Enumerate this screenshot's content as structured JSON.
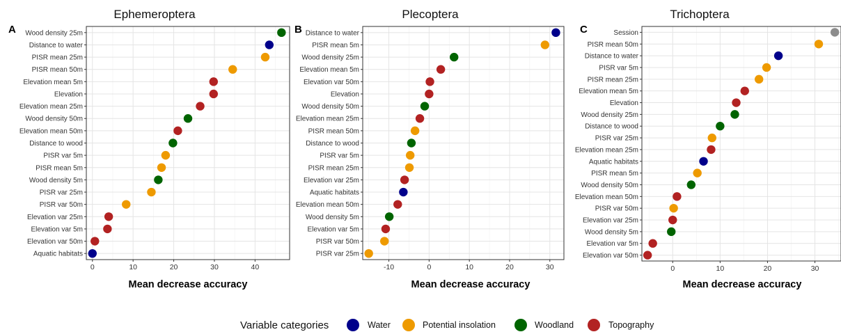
{
  "colors": {
    "Water": "#00008b",
    "Potential insolation": "#ee9a00",
    "Woodland": "#006400",
    "Topography": "#b22222",
    "Other": "#8c8c8c"
  },
  "legend": {
    "title": "Variable categories",
    "items": [
      {
        "label": "Water",
        "category": "Water"
      },
      {
        "label": "Potential insolation",
        "category": "Potential insolation"
      },
      {
        "label": "Woodland",
        "category": "Woodland"
      },
      {
        "label": "Topography",
        "category": "Topography"
      }
    ]
  },
  "chart_data": [
    {
      "type": "scatter",
      "panel": "A",
      "title": "Ephemeroptera",
      "xlabel": "Mean decrease accuracy",
      "xlim": [
        -1.5,
        48.5
      ],
      "xticks": [
        0,
        10,
        20,
        30,
        40
      ],
      "grid": true,
      "points": [
        {
          "label": "Wood density 25m",
          "value": 46.5,
          "category": "Woodland"
        },
        {
          "label": "Distance to water",
          "value": 43.5,
          "category": "Water"
        },
        {
          "label": "PISR mean 25m",
          "value": 42.5,
          "category": "Potential insolation"
        },
        {
          "label": "PISR mean 50m",
          "value": 34.5,
          "category": "Potential insolation"
        },
        {
          "label": "Elevation mean 5m",
          "value": 29.8,
          "category": "Topography"
        },
        {
          "label": "Elevation",
          "value": 29.8,
          "category": "Topography"
        },
        {
          "label": "Elevation mean 25m",
          "value": 26.5,
          "category": "Topography"
        },
        {
          "label": "Wood density 50m",
          "value": 23.5,
          "category": "Woodland"
        },
        {
          "label": "Elevation mean 50m",
          "value": 21.0,
          "category": "Topography"
        },
        {
          "label": "Distance to wood",
          "value": 19.8,
          "category": "Woodland"
        },
        {
          "label": "PISR var 5m",
          "value": 18.0,
          "category": "Potential insolation"
        },
        {
          "label": "PISR mean 5m",
          "value": 17.0,
          "category": "Potential insolation"
        },
        {
          "label": "Wood density 5m",
          "value": 16.2,
          "category": "Woodland"
        },
        {
          "label": "PISR var 25m",
          "value": 14.5,
          "category": "Potential insolation"
        },
        {
          "label": "PISR var 50m",
          "value": 8.3,
          "category": "Potential insolation"
        },
        {
          "label": "Elevation var 25m",
          "value": 4.0,
          "category": "Topography"
        },
        {
          "label": "Elevation var 5m",
          "value": 3.7,
          "category": "Topography"
        },
        {
          "label": "Elevation var 50m",
          "value": 0.6,
          "category": "Topography"
        },
        {
          "label": "Aquatic habitats",
          "value": 0.0,
          "category": "Water"
        }
      ]
    },
    {
      "type": "scatter",
      "panel": "B",
      "title": "Plecoptera",
      "xlabel": "Mean decrease accuracy",
      "xlim": [
        -16.5,
        33.5
      ],
      "xticks": [
        -10,
        0,
        10,
        20,
        30
      ],
      "grid": true,
      "points": [
        {
          "label": "Distance to water",
          "value": 31.5,
          "category": "Water"
        },
        {
          "label": "PISR mean 5m",
          "value": 28.8,
          "category": "Potential insolation"
        },
        {
          "label": "Wood density 25m",
          "value": 6.2,
          "category": "Woodland"
        },
        {
          "label": "Elevation mean 5m",
          "value": 2.9,
          "category": "Topography"
        },
        {
          "label": "Elevation var 50m",
          "value": 0.2,
          "category": "Topography"
        },
        {
          "label": "Elevation",
          "value": 0.0,
          "category": "Topography"
        },
        {
          "label": "Wood density 50m",
          "value": -1.1,
          "category": "Woodland"
        },
        {
          "label": "Elevation mean 25m",
          "value": -2.3,
          "category": "Topography"
        },
        {
          "label": "PISR mean 50m",
          "value": -3.5,
          "category": "Potential insolation"
        },
        {
          "label": "Distance to wood",
          "value": -4.4,
          "category": "Woodland"
        },
        {
          "label": "PISR var 5m",
          "value": -4.7,
          "category": "Potential insolation"
        },
        {
          "label": "PISR mean 25m",
          "value": -4.9,
          "category": "Potential insolation"
        },
        {
          "label": "Elevation var 25m",
          "value": -6.1,
          "category": "Topography"
        },
        {
          "label": "Aquatic habitats",
          "value": -6.4,
          "category": "Water"
        },
        {
          "label": "Elevation mean 50m",
          "value": -7.8,
          "category": "Topography"
        },
        {
          "label": "Wood density 5m",
          "value": -9.9,
          "category": "Woodland"
        },
        {
          "label": "Elevation var 5m",
          "value": -10.8,
          "category": "Topography"
        },
        {
          "label": "PISR var 50m",
          "value": -11.1,
          "category": "Potential insolation"
        },
        {
          "label": "PISR var 25m",
          "value": -15.0,
          "category": "Potential insolation"
        }
      ]
    },
    {
      "type": "scatter",
      "panel": "C",
      "title": "Trichoptera",
      "xlabel": "Mean decrease accuracy",
      "xlim": [
        -6.5,
        35.5
      ],
      "xticks": [
        0,
        10,
        20,
        30
      ],
      "grid": true,
      "points": [
        {
          "label": "Session",
          "value": 34.2,
          "category": "Other"
        },
        {
          "label": "PISR mean 50m",
          "value": 30.8,
          "category": "Potential insolation"
        },
        {
          "label": "Distance to water",
          "value": 22.3,
          "category": "Water"
        },
        {
          "label": "PISR var 5m",
          "value": 19.8,
          "category": "Potential insolation"
        },
        {
          "label": "PISR mean 25m",
          "value": 18.2,
          "category": "Potential insolation"
        },
        {
          "label": "Elevation mean 5m",
          "value": 15.2,
          "category": "Topography"
        },
        {
          "label": "Elevation",
          "value": 13.4,
          "category": "Topography"
        },
        {
          "label": "Wood density 25m",
          "value": 13.1,
          "category": "Woodland"
        },
        {
          "label": "Distance to wood",
          "value": 10.0,
          "category": "Woodland"
        },
        {
          "label": "PISR var 25m",
          "value": 8.3,
          "category": "Potential insolation"
        },
        {
          "label": "Elevation mean 25m",
          "value": 8.1,
          "category": "Topography"
        },
        {
          "label": "Aquatic habitats",
          "value": 6.5,
          "category": "Water"
        },
        {
          "label": "PISR mean 5m",
          "value": 5.2,
          "category": "Potential insolation"
        },
        {
          "label": "Wood density 50m",
          "value": 3.9,
          "category": "Woodland"
        },
        {
          "label": "Elevation mean 50m",
          "value": 0.9,
          "category": "Topography"
        },
        {
          "label": "PISR var 50m",
          "value": 0.2,
          "category": "Potential insolation"
        },
        {
          "label": "Elevation var 25m",
          "value": 0.0,
          "category": "Topography"
        },
        {
          "label": "Wood density 5m",
          "value": -0.3,
          "category": "Woodland"
        },
        {
          "label": "Elevation var 5m",
          "value": -4.2,
          "category": "Topography"
        },
        {
          "label": "Elevation var 50m",
          "value": -5.3,
          "category": "Topography"
        }
      ]
    }
  ]
}
